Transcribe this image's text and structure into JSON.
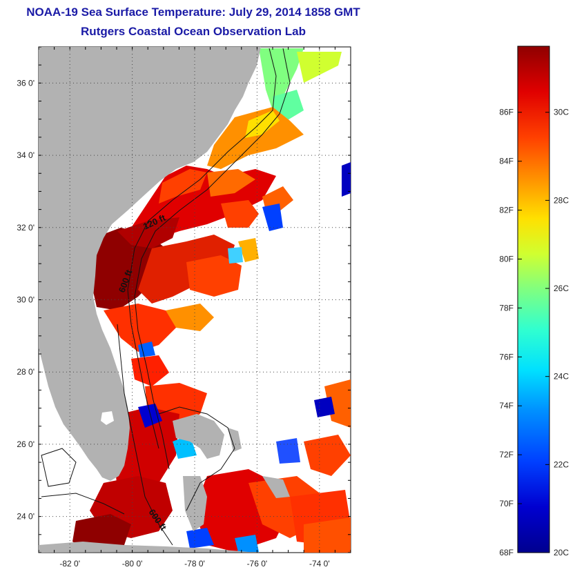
{
  "title": "NOAA-19 Sea Surface Temperature:  July 29, 2014 1858 GMT",
  "subtitle": "Rutgers Coastal Ocean Observation Lab",
  "map": {
    "lon_range": [
      -83,
      -73
    ],
    "lat_range": [
      23,
      37
    ],
    "land_color": "#b2b2b2",
    "no_data_color": "#ffffff",
    "gridlines": "dotted",
    "lat_ticks": [
      {
        "value": 36,
        "label": "36 0'"
      },
      {
        "value": 34,
        "label": "34 0'"
      },
      {
        "value": 32,
        "label": "32 0'"
      },
      {
        "value": 30,
        "label": "30 0'"
      },
      {
        "value": 28,
        "label": "28 0'"
      },
      {
        "value": 26,
        "label": "26 0'"
      },
      {
        "value": 24,
        "label": "24 0'"
      }
    ],
    "lon_ticks": [
      {
        "value": -82,
        "label": "-82 0'"
      },
      {
        "value": -80,
        "label": "-80 0'"
      },
      {
        "value": -78,
        "label": "-78 0'"
      },
      {
        "value": -76,
        "label": "-76 0'"
      },
      {
        "value": -74,
        "label": "-74 0'"
      }
    ],
    "contour_labels": [
      "120 ft",
      "600 ft",
      "600 ft"
    ]
  },
  "colorbar": {
    "colors": [
      "#00008f",
      "#0000d0",
      "#0040ff",
      "#0090ff",
      "#00e0ff",
      "#30ffd0",
      "#80ff80",
      "#d0ff30",
      "#ffe000",
      "#ff9000",
      "#ff4000",
      "#e00000",
      "#8f0000"
    ],
    "fahrenheit_labels": [
      "86F",
      "84F",
      "82F",
      "80F",
      "78F",
      "76F",
      "74F",
      "72F",
      "70F",
      "68F"
    ],
    "fahrenheit_values": [
      86,
      84,
      82,
      80,
      78,
      76,
      74,
      72,
      70,
      68
    ],
    "celsius_labels": [
      "30C",
      "28C",
      "26C",
      "24C",
      "22C",
      "20C"
    ],
    "celsius_values": [
      30,
      28,
      26,
      24,
      22,
      20
    ],
    "min_c": 20,
    "max_c": 31.5
  }
}
